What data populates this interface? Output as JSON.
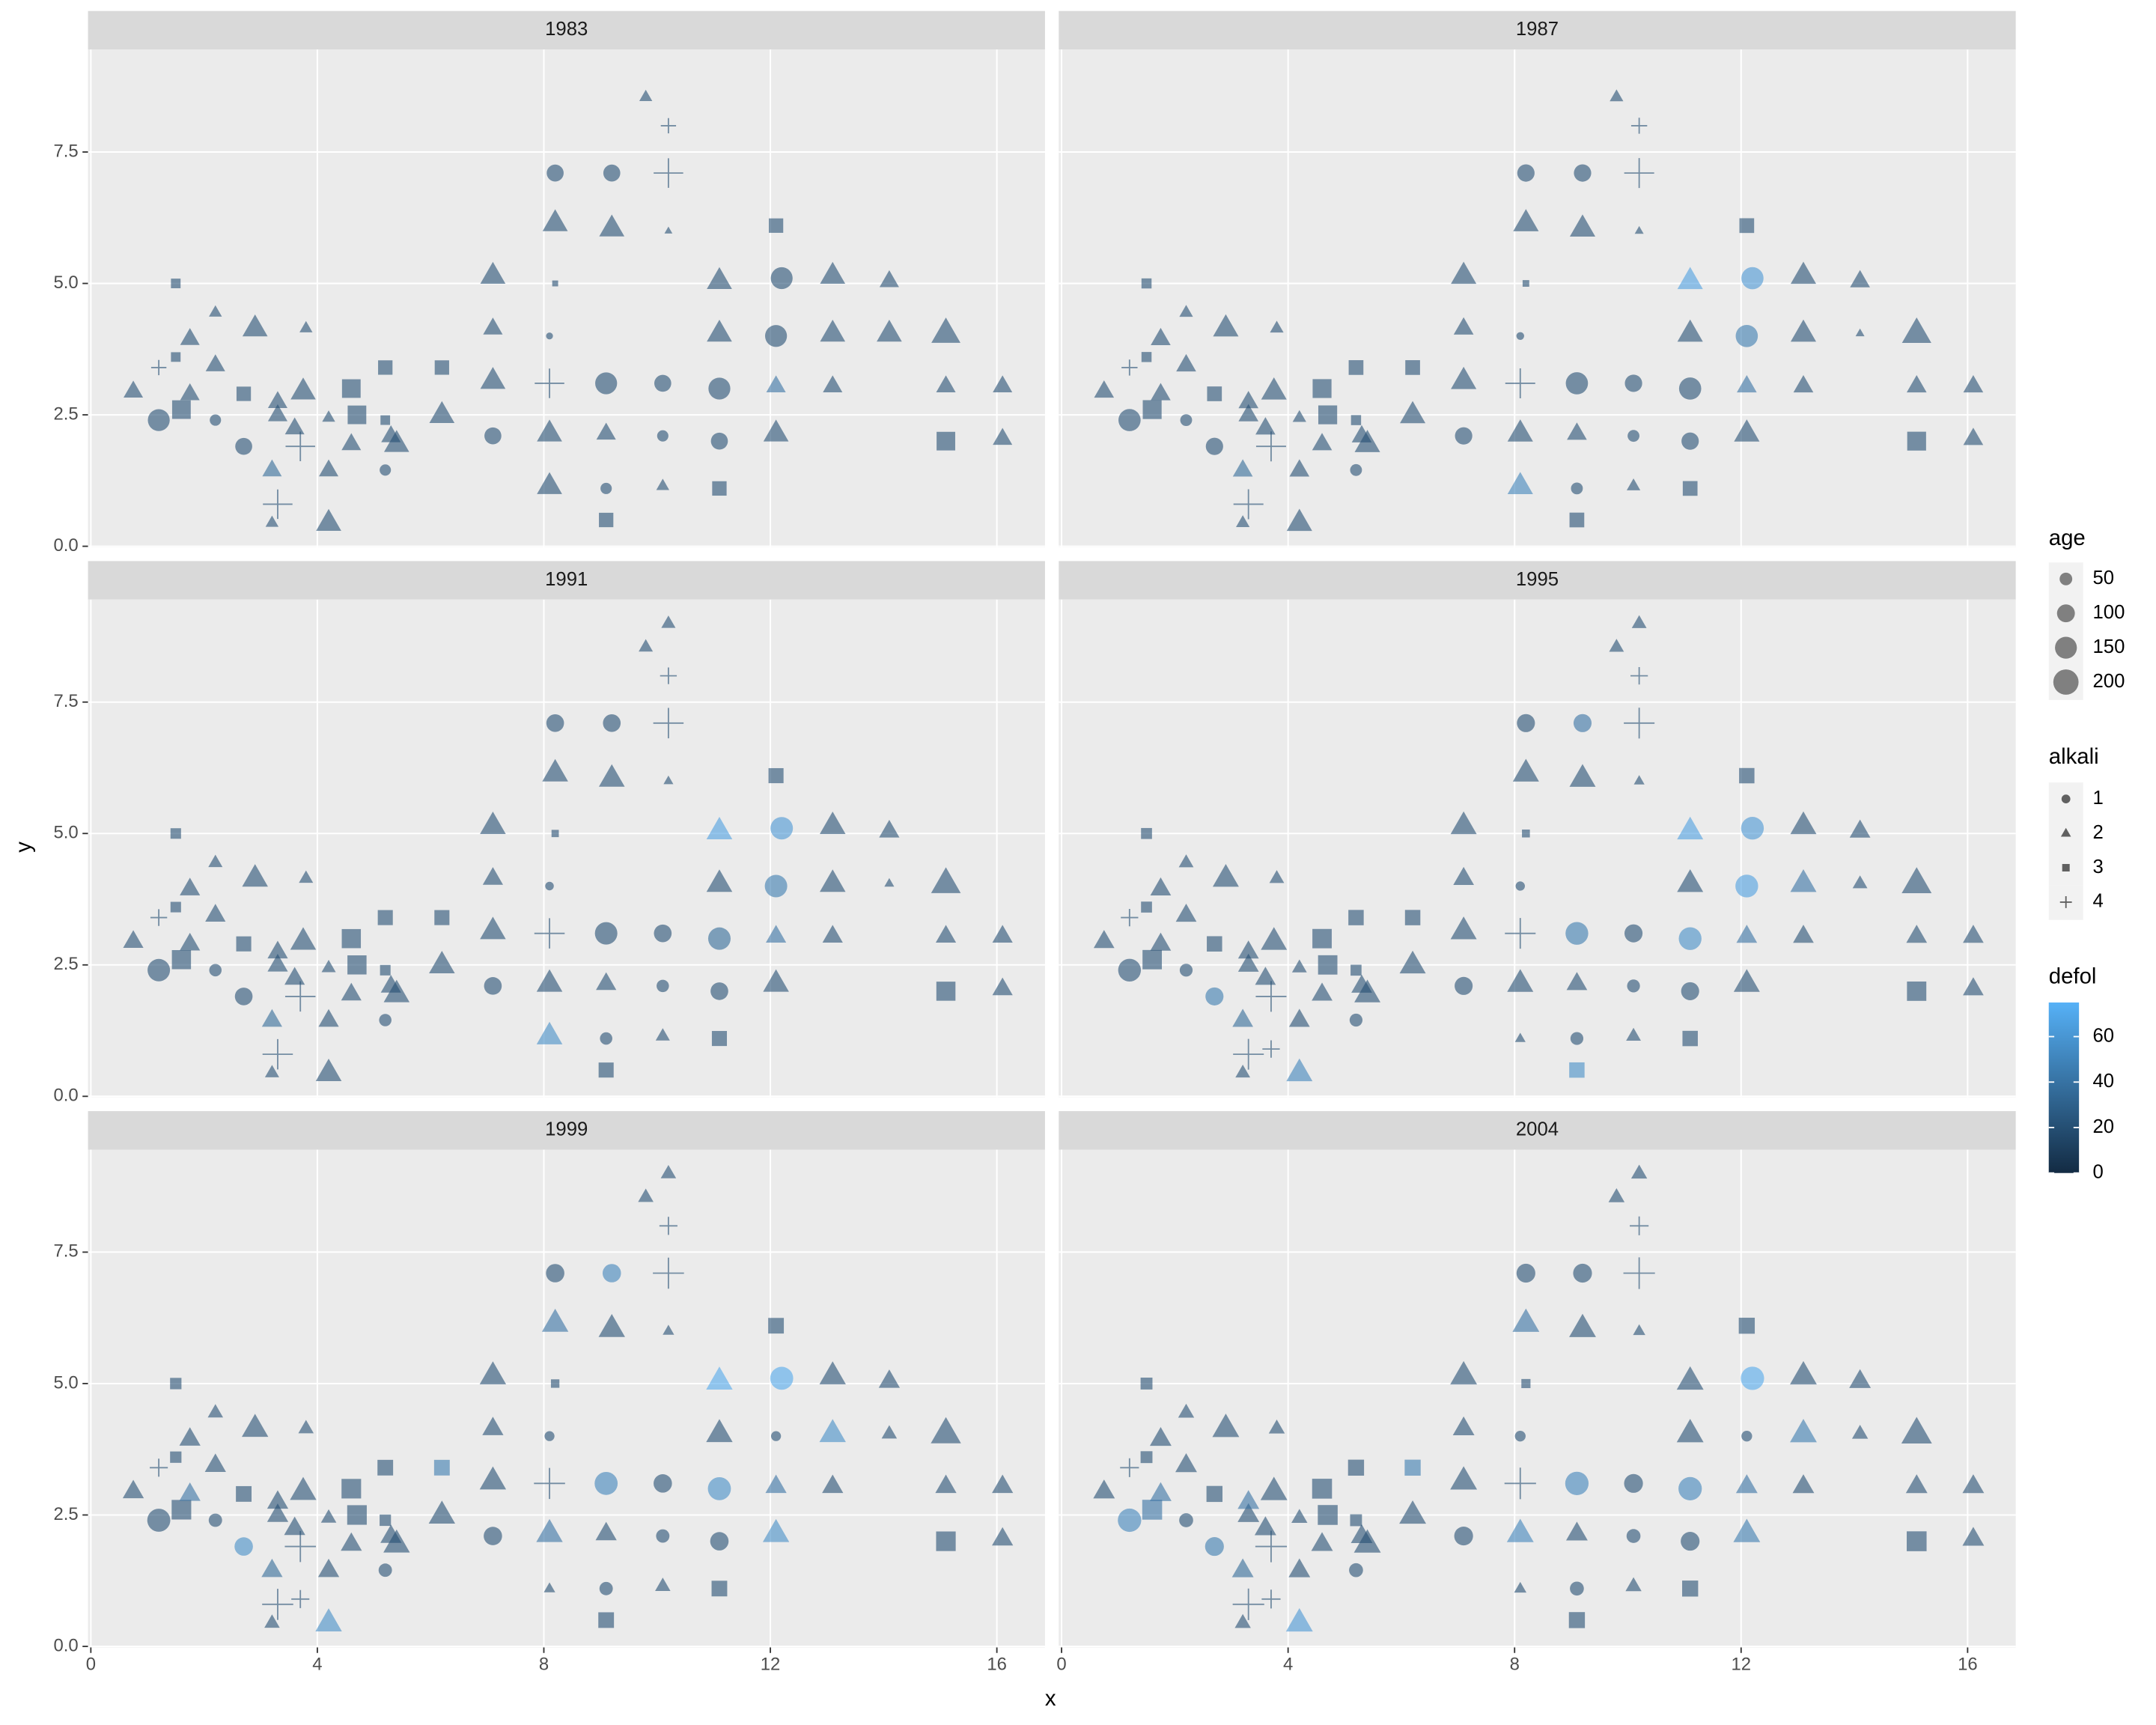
{
  "chart_data": {
    "type": "scatter",
    "x_label": "x",
    "y_label": "y",
    "grid": true,
    "alpha": 0.6,
    "xlim": [
      -0.05,
      16.85
    ],
    "xticks": [
      0,
      4,
      8,
      12,
      16
    ],
    "ylim": [
      -0.02,
      9.45
    ],
    "yticks": [
      {
        "value": 0,
        "label": "0.0"
      },
      {
        "value": 2.5,
        "label": "2.5"
      },
      {
        "value": 5,
        "label": "5.0"
      },
      {
        "value": 7.5,
        "label": "7.5"
      }
    ],
    "x": [
      0.75,
      1.2,
      1.2,
      1.5,
      1.5,
      1.6,
      1.75,
      1.75,
      2.2,
      2.2,
      2.2,
      2.7,
      2.7,
      2.9,
      3.2,
      3.2,
      3.3,
      3.3,
      3.3,
      3.6,
      3.7,
      3.75,
      3.8,
      4.2,
      4.2,
      4.2,
      4.6,
      4.6,
      4.7,
      5.2,
      5.2,
      5.2,
      5.3,
      5.4,
      6.2,
      6.2,
      7.1,
      7.1,
      7.1,
      7.1,
      8.1,
      8.1,
      8.1,
      8.2,
      8.2,
      8.2,
      8.1,
      9.1,
      9.1,
      9.1,
      9.1,
      9.2,
      9.2,
      9.8,
      10.1,
      10.1,
      10.1,
      10.2,
      10.2,
      10.2,
      11.1,
      11.1,
      11.1,
      11.1,
      11.1,
      12.1,
      12.2,
      12.1,
      12.1,
      12.1,
      13.1,
      13.1,
      13.1,
      14.1,
      14.1,
      15.1,
      15.1,
      15.1,
      16.1,
      16.1,
      10.2,
      3.7,
      8.1
    ],
    "y": [
      2.95,
      3.4,
      2.4,
      5.0,
      3.6,
      2.6,
      3.95,
      2.9,
      4.45,
      3.45,
      2.4,
      2.9,
      1.9,
      4.15,
      1.45,
      0.45,
      2.5,
      2.75,
      0.8,
      2.25,
      1.9,
      2.95,
      4.15,
      2.45,
      1.45,
      0.45,
      3.0,
      1.95,
      2.5,
      3.4,
      2.4,
      1.45,
      2.1,
      1.95,
      3.4,
      2.5,
      5.15,
      4.15,
      3.15,
      2.1,
      3.1,
      2.15,
      1.15,
      7.1,
      6.15,
      5.0,
      4.0,
      3.1,
      2.15,
      1.1,
      0.5,
      7.1,
      6.05,
      8.55,
      3.1,
      2.1,
      1.15,
      8.0,
      7.1,
      6.0,
      5.05,
      4.05,
      3.0,
      2.0,
      1.1,
      6.1,
      5.1,
      4.0,
      3.05,
      2.15,
      5.15,
      4.05,
      3.05,
      5.05,
      4.05,
      4.05,
      3.05,
      2.0,
      3.05,
      2.05,
      9.0,
      0.9,
      1.1
    ],
    "alkali": [
      2,
      4,
      1,
      3,
      3,
      3,
      2,
      2,
      2,
      2,
      1,
      3,
      1,
      2,
      2,
      2,
      2,
      2,
      4,
      2,
      4,
      2,
      2,
      2,
      2,
      2,
      3,
      2,
      3,
      3,
      3,
      1,
      2,
      2,
      3,
      2,
      2,
      2,
      2,
      1,
      4,
      2,
      2,
      1,
      2,
      3,
      1,
      1,
      2,
      1,
      3,
      1,
      2,
      2,
      1,
      1,
      2,
      4,
      4,
      2,
      2,
      2,
      1,
      1,
      3,
      3,
      1,
      1,
      2,
      2,
      2,
      2,
      2,
      2,
      2,
      2,
      2,
      3,
      2,
      2,
      2,
      4,
      2
    ],
    "panels": [
      {
        "title": "1983",
        "age": [
          90,
          40,
          150,
          40,
          40,
          150,
          90,
          90,
          40,
          90,
          40,
          90,
          90,
          150,
          90,
          40,
          90,
          90,
          150,
          90,
          150,
          150,
          40,
          40,
          90,
          150,
          150,
          90,
          150,
          90,
          40,
          40,
          90,
          150,
          90,
          150,
          150,
          90,
          150,
          90,
          150,
          150,
          150,
          90,
          150,
          15,
          15,
          150,
          90,
          40,
          90,
          90,
          150,
          40,
          90,
          40,
          40,
          40,
          150,
          15,
          150,
          150,
          150,
          90,
          90,
          90,
          150,
          150,
          90,
          150,
          150,
          150,
          90,
          90,
          150,
          200,
          90,
          150,
          90,
          90,
          null,
          null,
          null
        ],
        "defol": [
          20,
          20,
          20,
          20,
          20,
          20,
          20,
          20,
          20,
          20,
          20,
          20,
          20,
          20,
          35,
          20,
          20,
          20,
          20,
          20,
          20,
          20,
          20,
          20,
          20,
          20,
          20,
          20,
          20,
          20,
          20,
          20,
          20,
          20,
          20,
          20,
          20,
          20,
          20,
          20,
          20,
          20,
          20,
          20,
          20,
          20,
          20,
          20,
          20,
          20,
          20,
          20,
          20,
          20,
          20,
          20,
          20,
          20,
          20,
          20,
          20,
          20,
          20,
          20,
          20,
          20,
          20,
          20,
          40,
          20,
          20,
          20,
          20,
          20,
          20,
          20,
          20,
          20,
          20,
          20,
          null,
          null,
          null
        ]
      },
      {
        "title": "1987",
        "age": [
          94,
          44,
          154,
          44,
          44,
          154,
          94,
          94,
          44,
          94,
          44,
          94,
          94,
          154,
          94,
          44,
          94,
          94,
          154,
          94,
          154,
          154,
          44,
          44,
          94,
          154,
          154,
          94,
          154,
          94,
          44,
          44,
          94,
          154,
          94,
          154,
          154,
          94,
          154,
          94,
          154,
          154,
          154,
          94,
          154,
          19,
          19,
          154,
          94,
          44,
          94,
          94,
          154,
          44,
          94,
          44,
          44,
          44,
          154,
          19,
          154,
          154,
          154,
          94,
          94,
          94,
          154,
          154,
          94,
          154,
          154,
          154,
          94,
          94,
          19,
          204,
          94,
          154,
          94,
          94,
          null,
          null,
          null
        ],
        "defol": [
          20,
          20,
          20,
          20,
          20,
          20,
          20,
          20,
          20,
          20,
          20,
          20,
          20,
          20,
          35,
          20,
          20,
          20,
          20,
          20,
          20,
          20,
          20,
          20,
          20,
          20,
          20,
          20,
          20,
          20,
          20,
          20,
          20,
          20,
          20,
          20,
          20,
          20,
          20,
          20,
          20,
          20,
          50,
          20,
          20,
          20,
          20,
          20,
          20,
          20,
          20,
          20,
          20,
          20,
          20,
          20,
          20,
          20,
          20,
          20,
          65,
          20,
          20,
          20,
          20,
          20,
          60,
          45,
          40,
          20,
          20,
          20,
          20,
          20,
          20,
          20,
          20,
          20,
          20,
          20,
          null,
          null,
          null
        ]
      },
      {
        "title": "1991",
        "age": [
          98,
          48,
          158,
          48,
          48,
          158,
          98,
          98,
          48,
          98,
          48,
          98,
          98,
          158,
          98,
          48,
          98,
          98,
          158,
          98,
          158,
          158,
          48,
          48,
          98,
          158,
          158,
          98,
          158,
          98,
          48,
          48,
          98,
          158,
          98,
          158,
          158,
          98,
          158,
          98,
          158,
          158,
          158,
          98,
          158,
          23,
          23,
          158,
          98,
          48,
          98,
          98,
          158,
          48,
          98,
          48,
          48,
          48,
          158,
          23,
          158,
          158,
          158,
          98,
          98,
          98,
          158,
          158,
          98,
          158,
          158,
          158,
          98,
          98,
          23,
          208,
          98,
          158,
          98,
          98,
          48,
          null,
          null
        ],
        "defol": [
          20,
          20,
          20,
          20,
          20,
          20,
          20,
          20,
          20,
          20,
          20,
          20,
          20,
          20,
          35,
          20,
          20,
          20,
          20,
          20,
          20,
          20,
          20,
          20,
          20,
          20,
          20,
          20,
          20,
          20,
          20,
          20,
          20,
          20,
          20,
          20,
          20,
          20,
          20,
          20,
          20,
          20,
          55,
          20,
          20,
          20,
          20,
          20,
          20,
          20,
          20,
          20,
          20,
          20,
          20,
          20,
          20,
          20,
          20,
          20,
          65,
          20,
          35,
          20,
          20,
          20,
          60,
          45,
          40,
          20,
          20,
          20,
          20,
          20,
          20,
          20,
          20,
          20,
          20,
          20,
          20,
          null,
          null
        ]
      },
      {
        "title": "1995",
        "age": [
          102,
          52,
          162,
          52,
          52,
          162,
          102,
          102,
          52,
          102,
          52,
          102,
          102,
          162,
          102,
          52,
          102,
          102,
          162,
          102,
          162,
          162,
          52,
          52,
          102,
          162,
          162,
          102,
          162,
          102,
          52,
          52,
          102,
          162,
          102,
          162,
          162,
          102,
          162,
          102,
          162,
          162,
          null,
          102,
          162,
          27,
          27,
          162,
          102,
          52,
          102,
          102,
          162,
          52,
          102,
          52,
          52,
          52,
          162,
          27,
          162,
          162,
          162,
          102,
          102,
          102,
          162,
          162,
          102,
          162,
          162,
          162,
          102,
          102,
          52,
          212,
          102,
          162,
          102,
          102,
          52,
          52,
          27
        ],
        "defol": [
          20,
          20,
          20,
          20,
          20,
          20,
          20,
          20,
          20,
          20,
          20,
          20,
          45,
          20,
          35,
          20,
          20,
          20,
          20,
          20,
          20,
          20,
          20,
          20,
          20,
          50,
          20,
          20,
          20,
          20,
          20,
          20,
          20,
          20,
          20,
          20,
          20,
          20,
          20,
          20,
          20,
          20,
          null,
          20,
          20,
          20,
          20,
          45,
          20,
          20,
          55,
          40,
          20,
          20,
          20,
          20,
          20,
          20,
          20,
          20,
          65,
          20,
          55,
          20,
          20,
          20,
          60,
          65,
          40,
          20,
          20,
          40,
          20,
          20,
          20,
          20,
          20,
          20,
          20,
          20,
          20,
          20,
          20
        ]
      },
      {
        "title": "1999",
        "age": [
          106,
          56,
          166,
          56,
          56,
          166,
          106,
          106,
          56,
          106,
          56,
          106,
          106,
          166,
          106,
          56,
          106,
          106,
          166,
          106,
          166,
          166,
          56,
          56,
          106,
          166,
          166,
          106,
          166,
          106,
          56,
          56,
          106,
          166,
          106,
          166,
          166,
          106,
          166,
          106,
          166,
          166,
          null,
          106,
          166,
          31,
          31,
          166,
          106,
          56,
          106,
          106,
          166,
          56,
          106,
          56,
          56,
          56,
          166,
          31,
          166,
          166,
          166,
          106,
          106,
          106,
          166,
          31,
          106,
          166,
          166,
          166,
          106,
          106,
          56,
          216,
          106,
          166,
          106,
          106,
          56,
          56,
          31
        ],
        "defol": [
          20,
          20,
          20,
          20,
          20,
          20,
          20,
          40,
          20,
          20,
          20,
          20,
          55,
          20,
          35,
          20,
          20,
          20,
          20,
          20,
          20,
          20,
          20,
          20,
          20,
          55,
          20,
          20,
          20,
          20,
          20,
          20,
          20,
          20,
          45,
          20,
          20,
          20,
          20,
          20,
          20,
          40,
          null,
          20,
          40,
          20,
          20,
          50,
          20,
          20,
          20,
          50,
          20,
          20,
          20,
          20,
          20,
          20,
          20,
          20,
          70,
          20,
          55,
          20,
          20,
          20,
          70,
          20,
          40,
          55,
          20,
          55,
          20,
          20,
          20,
          20,
          20,
          20,
          20,
          20,
          20,
          20,
          20
        ]
      },
      {
        "title": "2004",
        "age": [
          111,
          61,
          171,
          61,
          61,
          171,
          111,
          111,
          61,
          111,
          61,
          111,
          111,
          171,
          111,
          61,
          111,
          111,
          171,
          111,
          171,
          171,
          61,
          61,
          111,
          171,
          171,
          111,
          171,
          111,
          61,
          61,
          111,
          171,
          111,
          171,
          171,
          111,
          171,
          111,
          171,
          171,
          null,
          111,
          171,
          36,
          36,
          171,
          111,
          61,
          111,
          111,
          171,
          61,
          111,
          61,
          61,
          61,
          171,
          36,
          171,
          171,
          171,
          111,
          111,
          111,
          171,
          36,
          111,
          171,
          171,
          171,
          111,
          111,
          61,
          221,
          111,
          171,
          111,
          111,
          61,
          61,
          36
        ],
        "defol": [
          20,
          20,
          50,
          20,
          20,
          40,
          20,
          40,
          20,
          20,
          20,
          20,
          45,
          20,
          35,
          20,
          20,
          40,
          20,
          20,
          20,
          20,
          20,
          20,
          20,
          60,
          20,
          20,
          20,
          20,
          20,
          20,
          20,
          20,
          45,
          20,
          20,
          20,
          20,
          20,
          20,
          50,
          null,
          20,
          40,
          20,
          20,
          50,
          20,
          20,
          20,
          20,
          20,
          20,
          20,
          20,
          20,
          20,
          20,
          20,
          20,
          20,
          50,
          20,
          20,
          20,
          70,
          20,
          40,
          45,
          20,
          45,
          20,
          20,
          20,
          20,
          20,
          20,
          20,
          20,
          20,
          20,
          20
        ]
      }
    ],
    "legend": {
      "age": {
        "title": "age",
        "values": [
          50,
          100,
          150,
          200
        ]
      },
      "alkali": {
        "title": "alkali",
        "values": [
          1,
          2,
          3,
          4
        ]
      },
      "defol": {
        "title": "defol",
        "lim": [
          0,
          75
        ],
        "ticks": [
          0,
          20,
          40,
          60
        ],
        "colors": [
          "#132B43",
          "#56B1F7"
        ]
      }
    }
  }
}
